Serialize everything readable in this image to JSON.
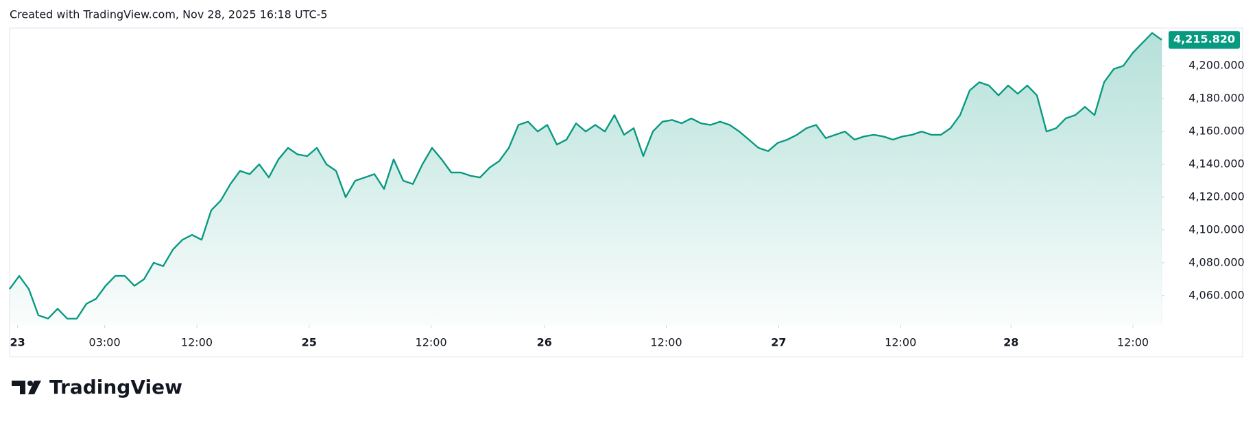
{
  "chart_data": {
    "type": "area",
    "title": "Created with TradingView.com, Nov 28, 2025 16:18 UTC-5",
    "brand": "TradingView",
    "color": "#089981",
    "values": [
      4064,
      4072,
      4064,
      4048,
      4046,
      4052,
      4046,
      4046,
      4055,
      4058,
      4066,
      4072,
      4072,
      4066,
      4070,
      4080,
      4078,
      4088,
      4094,
      4097,
      4094,
      4112,
      4118,
      4128,
      4136,
      4134,
      4140,
      4132,
      4143,
      4150,
      4146,
      4145,
      4150,
      4140,
      4136,
      4120,
      4130,
      4132,
      4134,
      4125,
      4143,
      4130,
      4128,
      4140,
      4150,
      4143,
      4135,
      4135,
      4133,
      4132,
      4138,
      4142,
      4150,
      4164,
      4166,
      4160,
      4164,
      4152,
      4155,
      4165,
      4160,
      4164,
      4160,
      4170,
      4158,
      4162,
      4145,
      4160,
      4166,
      4167,
      4165,
      4168,
      4165,
      4164,
      4166,
      4164,
      4160,
      4155,
      4150,
      4148,
      4153,
      4155,
      4158,
      4162,
      4164,
      4156,
      4158,
      4160,
      4155,
      4157,
      4158,
      4157,
      4155,
      4157,
      4158,
      4160,
      4158,
      4158,
      4162,
      4170,
      4185,
      4190,
      4188,
      4182,
      4188,
      4183,
      4188,
      4182,
      4160,
      4162,
      4168,
      4170,
      4175,
      4170,
      4190,
      4198,
      4200,
      4208,
      4214,
      4220,
      4215.82
    ],
    "price_label": {
      "value": 4215.82,
      "label": "4,215.820"
    },
    "xlim": [
      0,
      120
    ],
    "xticks": [
      {
        "value": 0.83,
        "label": "23"
      },
      {
        "value": 9.9,
        "label": "03:00"
      },
      {
        "value": 19.5,
        "label": "12:00"
      },
      {
        "value": 31.2,
        "label": "25"
      },
      {
        "value": 43.9,
        "label": "12:00"
      },
      {
        "value": 55.7,
        "label": "26"
      },
      {
        "value": 68.4,
        "label": "12:00"
      },
      {
        "value": 80.1,
        "label": "27"
      },
      {
        "value": 92.8,
        "label": "12:00"
      },
      {
        "value": 104.3,
        "label": "28"
      },
      {
        "value": 117,
        "label": "12:00"
      }
    ],
    "ylim": [
      4042,
      4223
    ],
    "yticks": [
      {
        "value": 4060,
        "label": "4,060.000"
      },
      {
        "value": 4080,
        "label": "4,080.000"
      },
      {
        "value": 4100,
        "label": "4,100.000"
      },
      {
        "value": 4120,
        "label": "4,120.000"
      },
      {
        "value": 4140,
        "label": "4,140.000"
      },
      {
        "value": 4160,
        "label": "4,160.000"
      },
      {
        "value": 4180,
        "label": "4,180.000"
      },
      {
        "value": 4200,
        "label": "4,200.000"
      }
    ]
  }
}
